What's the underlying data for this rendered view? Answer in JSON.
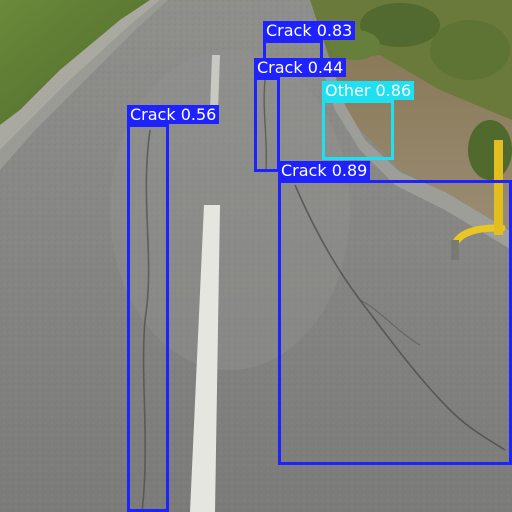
{
  "colors": {
    "crack": "#1e22ff",
    "other": "#1ee0f0"
  },
  "detections": [
    {
      "label": "Crack 0.83",
      "class": "crack"
    },
    {
      "label": "Crack 0.44",
      "class": "crack"
    },
    {
      "label": "Other 0.86",
      "class": "other"
    },
    {
      "label": "Crack 0.56",
      "class": "crack"
    },
    {
      "label": "Crack 0.89",
      "class": "crack"
    }
  ]
}
